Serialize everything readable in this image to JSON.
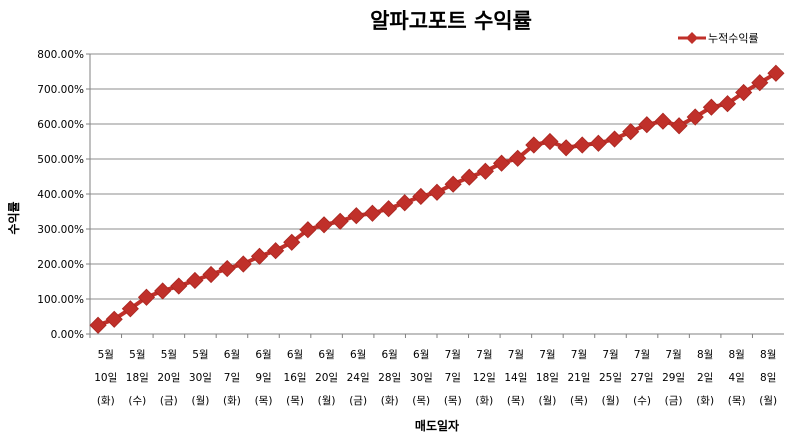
{
  "chart_data": {
    "type": "line",
    "title": "알파고포트 수익률",
    "xlabel": "매도일자",
    "ylabel": "수익률",
    "ylim": [
      0,
      800
    ],
    "yticks": [
      "0.00%",
      "100.00%",
      "200.00%",
      "300.00%",
      "400.00%",
      "500.00%",
      "600.00%",
      "700.00%",
      "800.00%"
    ],
    "grid": "horizontal",
    "legend_position": "top-right",
    "series_color": "#c0302a",
    "marker": "diamond",
    "x_labels": [
      [
        "5월",
        "10일",
        "(화)"
      ],
      [
        "5월",
        "18일",
        "(수)"
      ],
      [
        "5월",
        "20일",
        "(금)"
      ],
      [
        "5월",
        "30일",
        "(월)"
      ],
      [
        "6월",
        "7일",
        "(화)"
      ],
      [
        "6월",
        "9일",
        "(목)"
      ],
      [
        "6월",
        "16일",
        "(목)"
      ],
      [
        "6월",
        "20일",
        "(월)"
      ],
      [
        "6월",
        "24일",
        "(금)"
      ],
      [
        "6월",
        "28일",
        "(화)"
      ],
      [
        "6월",
        "30일",
        "(목)"
      ],
      [
        "7월",
        "7일",
        "(목)"
      ],
      [
        "7월",
        "12일",
        "(화)"
      ],
      [
        "7월",
        "14일",
        "(목)"
      ],
      [
        "7월",
        "18일",
        "(월)"
      ],
      [
        "7월",
        "21일",
        "(목)"
      ],
      [
        "7월",
        "25일",
        "(월)"
      ],
      [
        "7월",
        "27일",
        "(수)"
      ],
      [
        "7월",
        "29일",
        "(금)"
      ],
      [
        "8월",
        "2일",
        "(화)"
      ],
      [
        "8월",
        "4일",
        "(목)"
      ],
      [
        "8월",
        "8일",
        "(월)"
      ]
    ],
    "series": [
      {
        "name": "누적수익률",
        "values": [
          25,
          42,
          72,
          105,
          123,
          137,
          153,
          170,
          187,
          200,
          222,
          238,
          262,
          298,
          312,
          322,
          338,
          345,
          358,
          375,
          393,
          405,
          428,
          448,
          465,
          488,
          502,
          540,
          550,
          532,
          540,
          545,
          557,
          578,
          598,
          608,
          595,
          620,
          648,
          658,
          690,
          718,
          745
        ]
      }
    ]
  }
}
